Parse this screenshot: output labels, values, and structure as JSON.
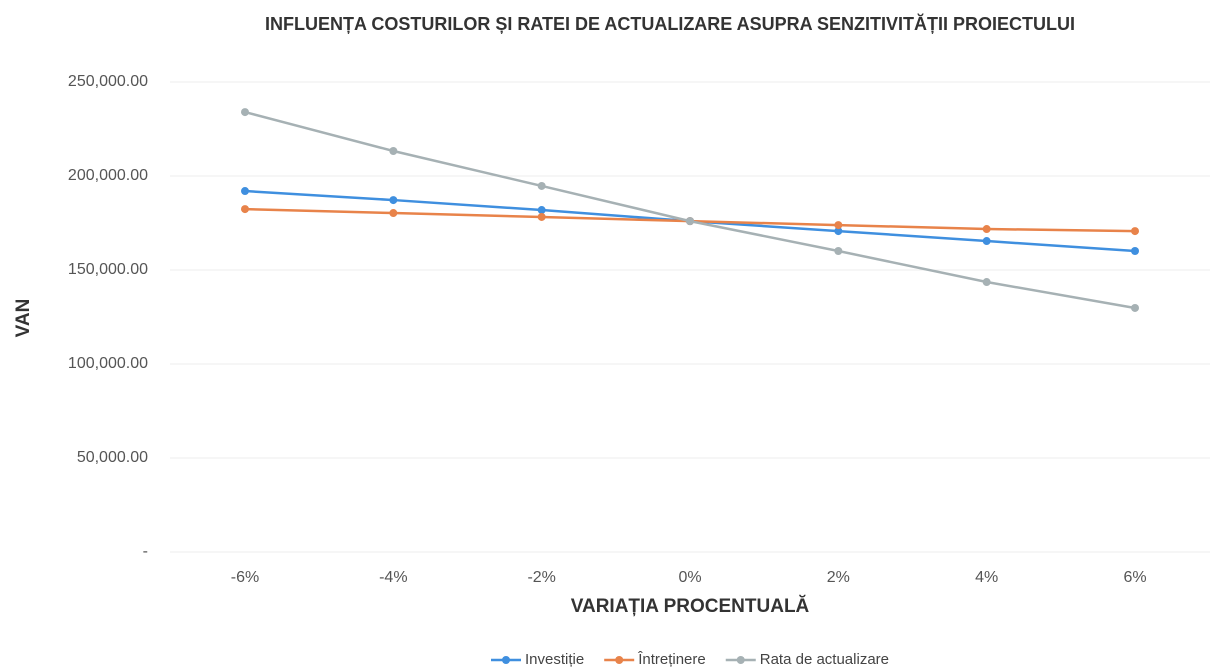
{
  "chart_data": {
    "type": "line",
    "title": "INFLUENȚA COSTURILOR ȘI RATEI DE ACTUALIZARE ASUPRA SENZITIVITĂȚII PROIECTULUI",
    "xlabel": "VARIAȚIA PROCENTUALĂ",
    "ylabel": "VAN",
    "categories": [
      "-6%",
      "-4%",
      "-2%",
      "0%",
      "2%",
      "4%",
      "6%"
    ],
    "series": [
      {
        "name": "Investiție",
        "color": "#3f8fdf",
        "values": [
          192000,
          187200,
          181900,
          176000,
          170700,
          165400,
          160100
        ]
      },
      {
        "name": "Întreținere",
        "color": "#e8834a",
        "values": [
          182400,
          180300,
          178200,
          176000,
          173900,
          171800,
          170700
        ]
      },
      {
        "name": "Rata de actualizare",
        "color": "#a6b1b4",
        "values": [
          234000,
          213300,
          194700,
          176000,
          160100,
          143600,
          129800
        ]
      }
    ],
    "ylim": [
      0,
      250000
    ],
    "yticks": [
      {
        "value": 0,
        "label": "-"
      },
      {
        "value": 50000,
        "label": "50,000.00"
      },
      {
        "value": 100000,
        "label": "100,000.00"
      },
      {
        "value": 150000,
        "label": "150,000.00"
      },
      {
        "value": 200000,
        "label": "200,000.00"
      },
      {
        "value": 250000,
        "label": "250,000.00"
      }
    ],
    "grid": true,
    "legend": "bottom"
  }
}
